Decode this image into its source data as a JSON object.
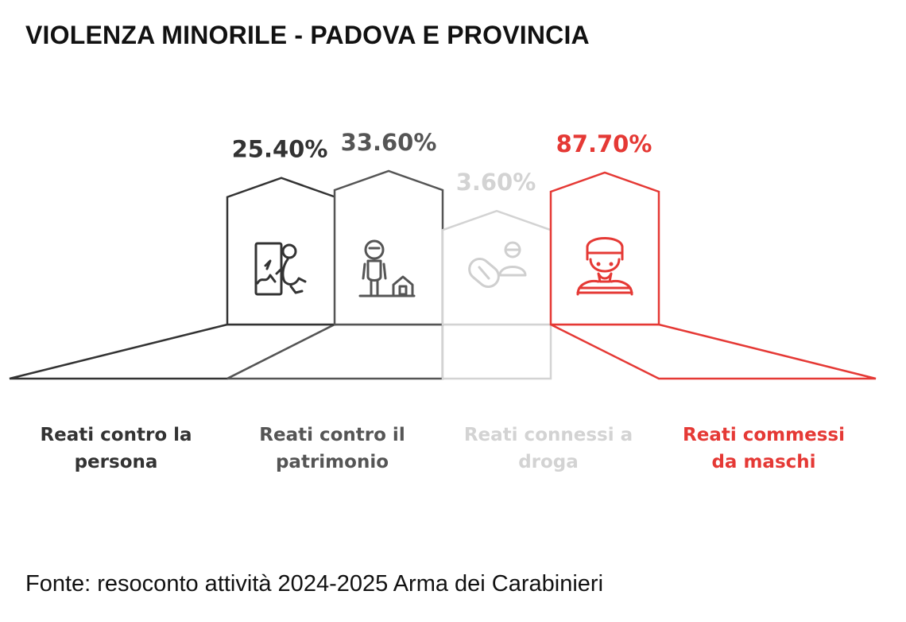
{
  "title": "VIOLENZA MINORILE - PADOVA E PROVINCIA",
  "source": "Fonte: resoconto attività 2024-2025 Arma dei Carabinieri",
  "chart_data": {
    "type": "bar",
    "title": "VIOLENZA MINORILE - PADOVA E PROVINCIA",
    "categories": [
      "Reati contro la persona",
      "Reati contro il patrimonio",
      "Reati connessi a droga",
      "Reati commessi da maschi"
    ],
    "category_lines": [
      [
        "Reati contro la",
        "persona"
      ],
      [
        "Reati contro il",
        "patrimonio"
      ],
      [
        "Reati connessi a",
        "droga"
      ],
      [
        "Reati commessi",
        "da maschi"
      ]
    ],
    "values": [
      25.4,
      33.6,
      3.6,
      87.7
    ],
    "value_labels": [
      "25.40%",
      "33.60%",
      "3.60%",
      "87.70%"
    ],
    "colors": [
      "#333333",
      "#555555",
      "#d3d3d3",
      "#e53935"
    ],
    "icons": [
      "assault-icon",
      "theft-icon",
      "drugs-icon",
      "male-offender-icon"
    ],
    "legend": "none",
    "grid": false
  }
}
